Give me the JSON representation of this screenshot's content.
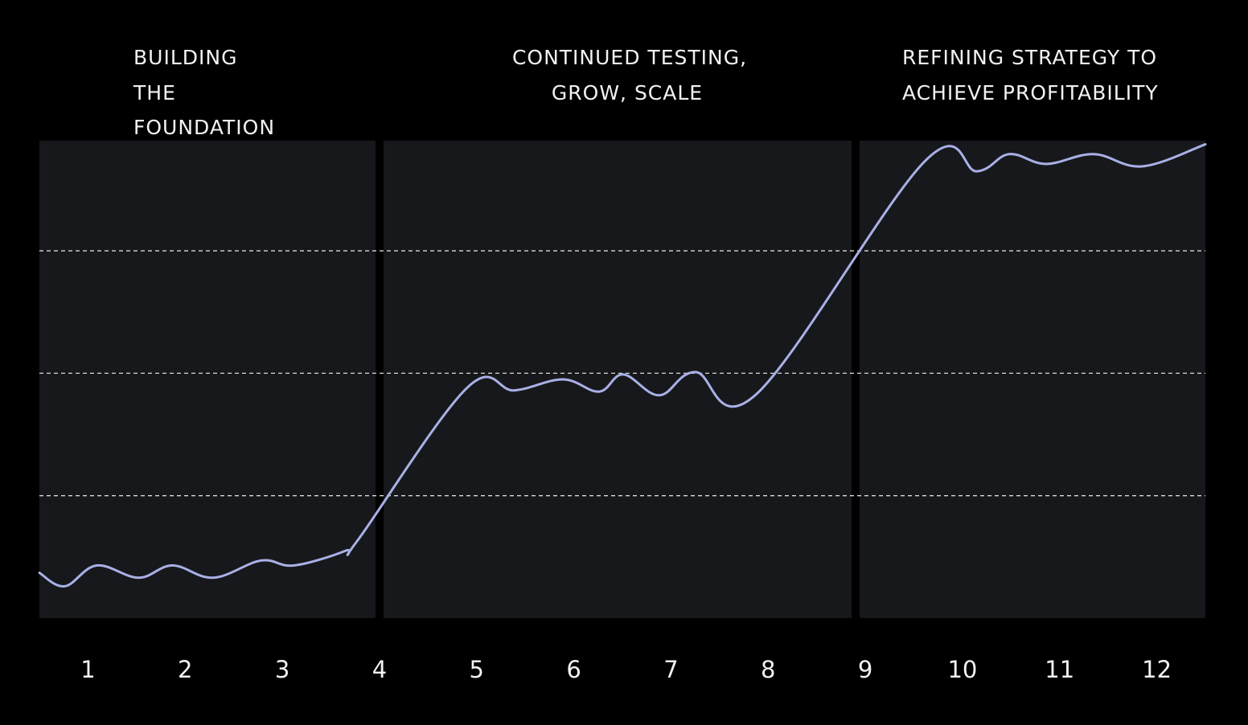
{
  "chart_data": {
    "type": "line",
    "phases": [
      {
        "lines": [
          "BUILDING",
          "THE",
          "FOUNDATION"
        ],
        "start": 0.5,
        "end": 4
      },
      {
        "lines": [
          "CONTINUED TESTING,",
          "GROW, SCALE"
        ],
        "start": 4,
        "end": 8.9
      },
      {
        "lines": [
          "REFINING  STRATEGY  TO",
          "ACHIEVE PROFITABILITY"
        ],
        "start": 8.9,
        "end": 12.5
      }
    ],
    "x": [
      0.5,
      0.76,
      1.09,
      1.52,
      1.87,
      2.29,
      2.78,
      3.12,
      3.65,
      3.78,
      4.9,
      5.39,
      5.89,
      6.26,
      6.51,
      6.88,
      7.25,
      7.88,
      9.61,
      10.15,
      10.48,
      10.86,
      11.35,
      11.85,
      12.5
    ],
    "values": [
      0.37,
      0.26,
      0.43,
      0.33,
      0.43,
      0.33,
      0.47,
      0.43,
      0.55,
      0.64,
      1.88,
      1.86,
      1.95,
      1.85,
      1.99,
      1.82,
      2.01,
      1.83,
      3.73,
      3.65,
      3.79,
      3.71,
      3.79,
      3.69,
      3.87
    ],
    "color": "#a9b0e6",
    "xlim": [
      0.5,
      12.5
    ],
    "xticks": [
      1,
      2,
      3,
      4,
      5,
      6,
      7,
      8,
      9,
      10,
      11,
      12
    ],
    "ylim": [
      0,
      3.9
    ],
    "yticks": [
      1,
      2,
      3
    ],
    "grid": true
  }
}
